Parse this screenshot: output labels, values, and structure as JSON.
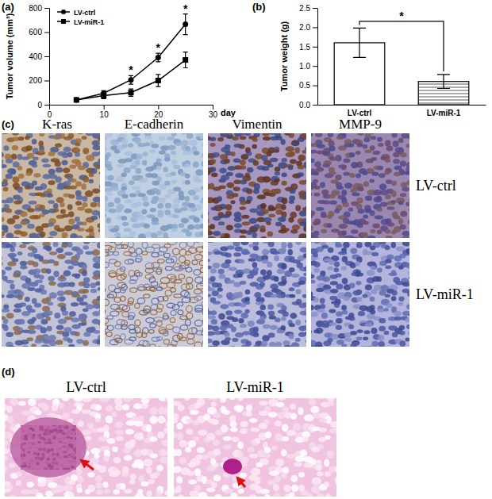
{
  "chart_data": [
    {
      "type": "line",
      "title": "(a)",
      "x": [
        5,
        10,
        15,
        20,
        25
      ],
      "xlabel": "day",
      "ylabel": "Tumor volume (mm³)",
      "xlim": [
        0,
        30
      ],
      "xticks": [
        0,
        10,
        20,
        30
      ],
      "ylim": [
        0,
        800
      ],
      "yticks": [
        0,
        200,
        400,
        600,
        800
      ],
      "legend": "upper left",
      "series": [
        {
          "name": "LV-ctrl",
          "color": "#000000",
          "marker": "circle",
          "values": [
            40,
            95,
            205,
            390,
            665
          ],
          "errors": [
            8,
            20,
            35,
            35,
            85
          ]
        },
        {
          "name": "LV-miR-1",
          "color": "#000000",
          "marker": "square",
          "values": [
            40,
            75,
            100,
            200,
            370
          ],
          "errors": [
            8,
            25,
            30,
            50,
            65
          ]
        }
      ],
      "annotations": [
        {
          "text": "*",
          "x": 15
        },
        {
          "text": "*",
          "x": 20
        },
        {
          "text": "*",
          "x": 25
        }
      ]
    },
    {
      "type": "bar",
      "title": "(b)",
      "categories": [
        "LV-ctrl",
        "LV-miR-1"
      ],
      "values": [
        1.6,
        0.6
      ],
      "errors": [
        0.38,
        0.18
      ],
      "colors": [
        "#ffffff",
        "#555555"
      ],
      "ylabel": "Tumor weight (g)",
      "ylim": [
        0,
        2.5
      ],
      "yticks": [
        {
          "value": 0,
          "label": "0.0"
        },
        0.5,
        {
          "value": 1,
          "label": "1.0"
        },
        1.5,
        {
          "value": 2,
          "label": "2.0"
        },
        2.5
      ],
      "annotations": [
        {
          "text": "*"
        }
      ]
    }
  ],
  "panels": {
    "c": {
      "label": "(c)",
      "columns": [
        "K-ras",
        "E-cadherin",
        "Vimentin",
        "MMP-9"
      ],
      "rows": [
        "LV-ctrl",
        "LV-miR-1"
      ]
    },
    "d": {
      "label": "(d)",
      "images": [
        "LV-ctrl",
        "LV-miR-1"
      ]
    }
  }
}
